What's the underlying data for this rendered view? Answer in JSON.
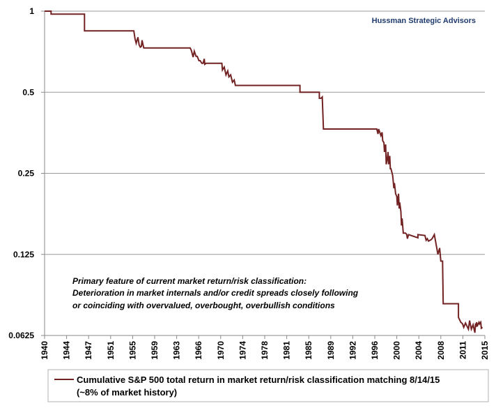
{
  "chart_data": {
    "type": "line",
    "scale": "log2",
    "ylim": [
      0.0625,
      1
    ],
    "yticks": [
      {
        "value": 1,
        "label": "1"
      },
      {
        "value": 0.5,
        "label": "0.5"
      },
      {
        "value": 0.25,
        "label": "0.25"
      },
      {
        "value": 0.125,
        "label": "0.125"
      },
      {
        "value": 0.0625,
        "label": "0.0625"
      }
    ],
    "xlim": [
      1940,
      2015
    ],
    "xticks": [
      "1940",
      "1944",
      "1947",
      "1951",
      "1955",
      "1959",
      "1963",
      "1966",
      "1970",
      "1974",
      "1978",
      "1981",
      "1985",
      "1989",
      "1992",
      "1996",
      "2000",
      "2004",
      "2008",
      "2011",
      "2015"
    ],
    "grid": "horizontal",
    "watermark": "Hussman Strategic Advisors",
    "annotation": [
      "Primary feature of current market return/risk classification:",
      "Deterioration in market internals and/or credit spreads closely following",
      "or coinciding with overvalued, overbought, overbullish conditions"
    ],
    "legend": {
      "position": "bottom",
      "lines": [
        "Cumulative S&P 500 total return in market return/risk classification matching 8/14/15",
        "(~8% of market history)"
      ]
    },
    "series": [
      {
        "name": "Cumulative S&P 500 total return in market return/risk classification matching 8/14/15 (~8% of market history)",
        "color": "#722222",
        "x": [
          1940,
          1941.1,
          1941.1,
          1946.8,
          1946.8,
          1955.2,
          1955.4,
          1955.6,
          1955.9,
          1956.1,
          1956.3,
          1956.5,
          1956.6,
          1956.8,
          1956.9,
          1964.8,
          1965.0,
          1965.3,
          1965.5,
          1965.8,
          1966.0,
          1966.3,
          1966.5,
          1966.8,
          1967.0,
          1967.2,
          1967.3,
          1967.5,
          1970.2,
          1970.3,
          1970.6,
          1970.9,
          1971.2,
          1971.4,
          1971.7,
          1972.0,
          1972.3,
          1972.5,
          1972.8,
          1983.5,
          1983.5,
          1986.8,
          1986.8,
          1987.1,
          1987.3,
          1987.5,
          1987.6,
          1996.6,
          1996.8,
          1996.9,
          1997.2,
          1997.3,
          1997.5,
          1997.6,
          1997.8,
          1997.9,
          1998.1,
          1998.2,
          1998.4,
          1998.5,
          1998.6,
          1998.8,
          1998.9,
          1999.0,
          1999.2,
          1999.3,
          1999.5,
          1999.6,
          1999.8,
          2000.0,
          2000.1,
          2000.3,
          2000.4,
          2000.5,
          2000.7,
          2000.8,
          2000.9,
          2001.1,
          2001.3,
          2001.5,
          2001.7,
          2001.8,
          2002.0,
          2003.6,
          2003.6,
          2004.8,
          2005.0,
          2005.2,
          2005.4,
          2005.9,
          2006.1,
          2006.4,
          2006.6,
          2007.0,
          2007.3,
          2007.5,
          2007.6,
          2007.8,
          2007.9,
          2008.0,
          2008.2,
          2008.3,
          2008.4,
          2010.5,
          2010.5,
          2010.9,
          2011.2,
          2011.4,
          2011.7,
          2012.2,
          2012.4,
          2012.7,
          2013.0,
          2013.2,
          2013.3,
          2013.4,
          2013.5,
          2013.6,
          2013.7,
          2013.8,
          2014.0,
          2014.1,
          2014.3,
          2014.4,
          2014.6
        ],
        "y": [
          1,
          1,
          0.975,
          0.975,
          0.845,
          0.845,
          0.79,
          0.76,
          0.8,
          0.75,
          0.735,
          0.74,
          0.78,
          0.745,
          0.73,
          0.73,
          0.715,
          0.675,
          0.71,
          0.68,
          0.68,
          0.655,
          0.655,
          0.64,
          0.64,
          0.665,
          0.635,
          0.64,
          0.64,
          0.605,
          0.62,
          0.58,
          0.6,
          0.57,
          0.58,
          0.545,
          0.555,
          0.53,
          0.53,
          0.53,
          0.5,
          0.5,
          0.475,
          0.475,
          0.48,
          0.365,
          0.365,
          0.365,
          0.35,
          0.365,
          0.35,
          0.345,
          0.355,
          0.33,
          0.325,
          0.3,
          0.32,
          0.27,
          0.285,
          0.3,
          0.27,
          0.29,
          0.26,
          0.26,
          0.25,
          0.245,
          0.22,
          0.23,
          0.21,
          0.205,
          0.19,
          0.21,
          0.185,
          0.195,
          0.18,
          0.16,
          0.17,
          0.15,
          0.15,
          0.15,
          0.148,
          0.143,
          0.148,
          0.144,
          0.148,
          0.147,
          0.141,
          0.143,
          0.14,
          0.142,
          0.144,
          0.148,
          0.14,
          0.125,
          0.132,
          0.118,
          0.118,
          0.118,
          0.082,
          0.082,
          0.082,
          0.082,
          0.082,
          0.082,
          0.073,
          0.07,
          0.069,
          0.067,
          0.0695,
          0.066,
          0.071,
          0.066,
          0.0685,
          0.0655,
          0.064,
          0.0685,
          0.068,
          0.07,
          0.0675,
          0.0685,
          0.07,
          0.069,
          0.07,
          0.0665,
          0.067
        ]
      }
    ]
  }
}
